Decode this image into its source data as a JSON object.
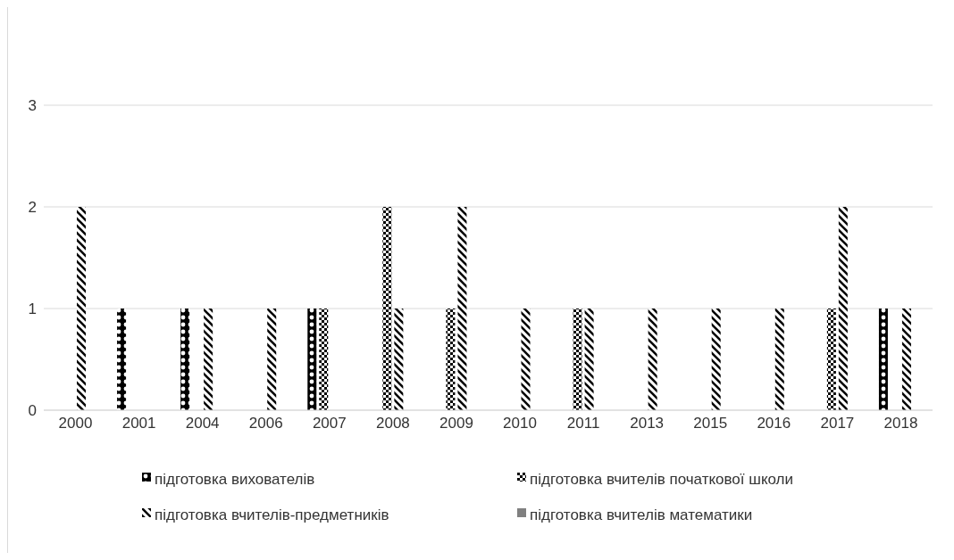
{
  "chart_data": {
    "type": "bar",
    "categories": [
      "2000",
      "2001",
      "2004",
      "2006",
      "2007",
      "2008",
      "2009",
      "2010",
      "2011",
      "2013",
      "2015",
      "2016",
      "2017",
      "2018"
    ],
    "series": [
      {
        "name": "підготовка вихователів",
        "color": "#000000",
        "values": [
          null,
          1,
          1,
          null,
          1,
          null,
          null,
          null,
          null,
          null,
          null,
          null,
          null,
          1
        ]
      },
      {
        "name": "підготовка вчителів початкової школи",
        "color": "#000000",
        "values": [
          null,
          null,
          null,
          null,
          1,
          2,
          1,
          null,
          1,
          null,
          null,
          null,
          1,
          null
        ]
      },
      {
        "name": "підготовка вчителів-предметників",
        "color": "#000000",
        "values": [
          2,
          null,
          1,
          1,
          null,
          1,
          2,
          1,
          1,
          1,
          1,
          1,
          2,
          1
        ]
      },
      {
        "name": "підготовка вчителів математики",
        "color": "#808080",
        "values": [
          null,
          null,
          null,
          null,
          null,
          null,
          null,
          null,
          null,
          null,
          null,
          null,
          null,
          null
        ]
      }
    ],
    "ylim": [
      0,
      3
    ],
    "yticks": [
      0,
      1,
      2,
      3
    ],
    "grid": "y",
    "legend": "bottom"
  }
}
